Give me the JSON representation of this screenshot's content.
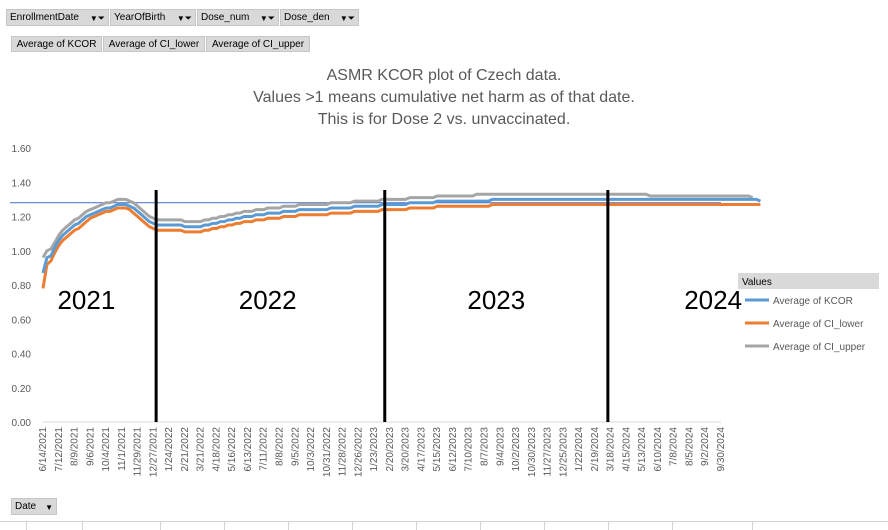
{
  "filters": [
    {
      "label": "EnrollmentDate"
    },
    {
      "label": "YearOfBirth"
    },
    {
      "label": "Dose_num"
    },
    {
      "label": "Dose_den"
    }
  ],
  "value_fields": [
    "Average of KCOR",
    "Average of CI_lower",
    "Average of CI_upper"
  ],
  "axis_field": {
    "label": "Date"
  },
  "colors": {
    "kcor": "#5b9bd5",
    "ci_lower": "#ed7d31",
    "ci_upper": "#a5a5a5",
    "reference_line": "#4472c4",
    "divider": "#000000"
  },
  "chart_data": {
    "type": "line",
    "title_lines": [
      "ASMR KCOR plot of Czech data.",
      "Values >1 means cumulative net harm as of that date.",
      "This is for Dose 2 vs. unvaccinated."
    ],
    "ylim": [
      0,
      1.6
    ],
    "y_ticks": [
      "0.00",
      "0.20",
      "0.40",
      "0.60",
      "0.80",
      "1.00",
      "1.20",
      "1.40",
      "1.60"
    ],
    "x_labels": [
      "6/14/2021",
      "7/12/2021",
      "8/9/2021",
      "9/6/2021",
      "10/4/2021",
      "11/1/2021",
      "11/29/2021",
      "12/27/2021",
      "1/24/2022",
      "2/21/2022",
      "3/21/2022",
      "4/18/2022",
      "5/16/2022",
      "6/13/2022",
      "7/11/2022",
      "8/8/2022",
      "9/5/2022",
      "10/3/2022",
      "10/31/2022",
      "11/28/2022",
      "12/26/2022",
      "1/23/2023",
      "2/20/2023",
      "3/20/2023",
      "4/17/2023",
      "5/15/2023",
      "6/12/2023",
      "7/10/2023",
      "8/7/2023",
      "9/4/2023",
      "10/2/2023",
      "10/30/2023",
      "11/27/2023",
      "12/25/2023",
      "1/22/2024",
      "2/19/2024",
      "3/18/2024",
      "4/15/2024",
      "5/13/2024",
      "6/10/2024",
      "7/8/2024",
      "8/5/2024",
      "9/2/2024",
      "9/30/2024"
    ],
    "x_count": 173,
    "legend_title": "Values",
    "legend_position": "right",
    "grid": false,
    "reference_line": 1.28,
    "dividers": [
      28.7,
      86.7,
      143.3
    ],
    "year_labels": [
      {
        "text": "2021",
        "x": 11
      },
      {
        "text": "2022",
        "x": 57
      },
      {
        "text": "2023",
        "x": 115
      },
      {
        "text": "2024",
        "x": 170
      }
    ],
    "series": [
      {
        "name": "Average of KCOR",
        "key": "kcor",
        "values": [
          0.87,
          0.96,
          0.97,
          1.02,
          1.06,
          1.09,
          1.11,
          1.13,
          1.15,
          1.16,
          1.18,
          1.2,
          1.21,
          1.22,
          1.23,
          1.24,
          1.25,
          1.25,
          1.26,
          1.27,
          1.27,
          1.27,
          1.26,
          1.25,
          1.23,
          1.21,
          1.19,
          1.17,
          1.16,
          1.15,
          1.15,
          1.15,
          1.15,
          1.15,
          1.15,
          1.15,
          1.14,
          1.14,
          1.14,
          1.14,
          1.14,
          1.15,
          1.15,
          1.16,
          1.16,
          1.17,
          1.17,
          1.18,
          1.18,
          1.19,
          1.19,
          1.2,
          1.2,
          1.2,
          1.21,
          1.21,
          1.21,
          1.22,
          1.22,
          1.22,
          1.22,
          1.23,
          1.23,
          1.23,
          1.23,
          1.24,
          1.24,
          1.24,
          1.24,
          1.24,
          1.24,
          1.24,
          1.24,
          1.25,
          1.25,
          1.25,
          1.25,
          1.25,
          1.25,
          1.26,
          1.26,
          1.26,
          1.26,
          1.26,
          1.26,
          1.26,
          1.27,
          1.27,
          1.27,
          1.27,
          1.27,
          1.27,
          1.27,
          1.28,
          1.28,
          1.28,
          1.28,
          1.28,
          1.28,
          1.28,
          1.29,
          1.29,
          1.29,
          1.29,
          1.29,
          1.29,
          1.29,
          1.29,
          1.29,
          1.29,
          1.29,
          1.29,
          1.29,
          1.29,
          1.3,
          1.3,
          1.3,
          1.3,
          1.3,
          1.3,
          1.3,
          1.3,
          1.3,
          1.3,
          1.3,
          1.3,
          1.3,
          1.3,
          1.3,
          1.3,
          1.3,
          1.3,
          1.3,
          1.3,
          1.3,
          1.3,
          1.3,
          1.3,
          1.3,
          1.3,
          1.3,
          1.3,
          1.3,
          1.3,
          1.3,
          1.3,
          1.3,
          1.3,
          1.3,
          1.3,
          1.3,
          1.3,
          1.3,
          1.3,
          1.3,
          1.3,
          1.3,
          1.3,
          1.3,
          1.3,
          1.3,
          1.3,
          1.3,
          1.3,
          1.3,
          1.3,
          1.3,
          1.3,
          1.3,
          1.3,
          1.3,
          1.3,
          1.3,
          1.3,
          1.3,
          1.3,
          1.3,
          1.3,
          1.3,
          1.3,
          1.3,
          1.3,
          1.29
        ]
      },
      {
        "name": "Average of CI_lower",
        "key": "ci_lower",
        "values": [
          0.78,
          0.92,
          0.94,
          0.99,
          1.03,
          1.06,
          1.08,
          1.1,
          1.12,
          1.13,
          1.15,
          1.17,
          1.19,
          1.2,
          1.21,
          1.22,
          1.23,
          1.23,
          1.24,
          1.25,
          1.25,
          1.25,
          1.24,
          1.22,
          1.2,
          1.18,
          1.16,
          1.14,
          1.13,
          1.12,
          1.12,
          1.12,
          1.12,
          1.12,
          1.12,
          1.12,
          1.11,
          1.11,
          1.11,
          1.11,
          1.11,
          1.12,
          1.12,
          1.13,
          1.13,
          1.14,
          1.14,
          1.15,
          1.15,
          1.16,
          1.16,
          1.17,
          1.17,
          1.17,
          1.18,
          1.18,
          1.18,
          1.19,
          1.19,
          1.19,
          1.19,
          1.2,
          1.2,
          1.2,
          1.2,
          1.21,
          1.21,
          1.21,
          1.21,
          1.21,
          1.21,
          1.21,
          1.21,
          1.22,
          1.22,
          1.22,
          1.22,
          1.22,
          1.22,
          1.23,
          1.23,
          1.23,
          1.23,
          1.23,
          1.23,
          1.23,
          1.24,
          1.24,
          1.24,
          1.24,
          1.24,
          1.24,
          1.24,
          1.25,
          1.25,
          1.25,
          1.25,
          1.25,
          1.25,
          1.25,
          1.26,
          1.26,
          1.26,
          1.26,
          1.26,
          1.26,
          1.26,
          1.26,
          1.26,
          1.26,
          1.26,
          1.26,
          1.26,
          1.26,
          1.27,
          1.27,
          1.27,
          1.27,
          1.27,
          1.27,
          1.27,
          1.27,
          1.27,
          1.27,
          1.27,
          1.27,
          1.27,
          1.27,
          1.27,
          1.27,
          1.27,
          1.27,
          1.27,
          1.27,
          1.27,
          1.27,
          1.27,
          1.27,
          1.27,
          1.27,
          1.27,
          1.27,
          1.27,
          1.27,
          1.27,
          1.27,
          1.27,
          1.27,
          1.27,
          1.27,
          1.27,
          1.27,
          1.27,
          1.27,
          1.27,
          1.27,
          1.27,
          1.27,
          1.27,
          1.27,
          1.27,
          1.27,
          1.27,
          1.27,
          1.27,
          1.27,
          1.27,
          1.27,
          1.27,
          1.27,
          1.27,
          1.27,
          1.27,
          1.27,
          1.27,
          1.27,
          1.27,
          1.27,
          1.27,
          1.27,
          1.27,
          1.27,
          1.27
        ]
      },
      {
        "name": "Average of CI_upper",
        "key": "ci_upper",
        "values": [
          0.96,
          1.0,
          1.01,
          1.05,
          1.09,
          1.12,
          1.14,
          1.16,
          1.18,
          1.19,
          1.21,
          1.23,
          1.24,
          1.25,
          1.26,
          1.27,
          1.28,
          1.28,
          1.29,
          1.3,
          1.3,
          1.3,
          1.29,
          1.28,
          1.26,
          1.24,
          1.22,
          1.2,
          1.19,
          1.18,
          1.18,
          1.18,
          1.18,
          1.18,
          1.18,
          1.18,
          1.17,
          1.17,
          1.17,
          1.17,
          1.17,
          1.18,
          1.18,
          1.19,
          1.19,
          1.2,
          1.2,
          1.21,
          1.21,
          1.22,
          1.22,
          1.23,
          1.23,
          1.23,
          1.24,
          1.24,
          1.24,
          1.25,
          1.25,
          1.25,
          1.25,
          1.26,
          1.26,
          1.26,
          1.26,
          1.27,
          1.27,
          1.27,
          1.27,
          1.27,
          1.27,
          1.27,
          1.27,
          1.28,
          1.28,
          1.28,
          1.28,
          1.28,
          1.28,
          1.29,
          1.29,
          1.29,
          1.29,
          1.29,
          1.29,
          1.29,
          1.3,
          1.3,
          1.3,
          1.3,
          1.3,
          1.3,
          1.3,
          1.31,
          1.31,
          1.31,
          1.31,
          1.31,
          1.31,
          1.31,
          1.32,
          1.32,
          1.32,
          1.32,
          1.32,
          1.32,
          1.32,
          1.32,
          1.32,
          1.32,
          1.33,
          1.33,
          1.33,
          1.33,
          1.33,
          1.33,
          1.33,
          1.33,
          1.33,
          1.33,
          1.33,
          1.33,
          1.33,
          1.33,
          1.33,
          1.33,
          1.33,
          1.33,
          1.33,
          1.33,
          1.33,
          1.33,
          1.33,
          1.33,
          1.33,
          1.33,
          1.33,
          1.33,
          1.33,
          1.33,
          1.33,
          1.33,
          1.33,
          1.33,
          1.33,
          1.33,
          1.33,
          1.33,
          1.33,
          1.33,
          1.33,
          1.33,
          1.33,
          1.33,
          1.32,
          1.32,
          1.32,
          1.32,
          1.32,
          1.32,
          1.32,
          1.32,
          1.32,
          1.32,
          1.32,
          1.32,
          1.32,
          1.32,
          1.32,
          1.32,
          1.32,
          1.32,
          1.32,
          1.32,
          1.32,
          1.32,
          1.32,
          1.32,
          1.32,
          1.32,
          1.31
        ]
      }
    ]
  }
}
